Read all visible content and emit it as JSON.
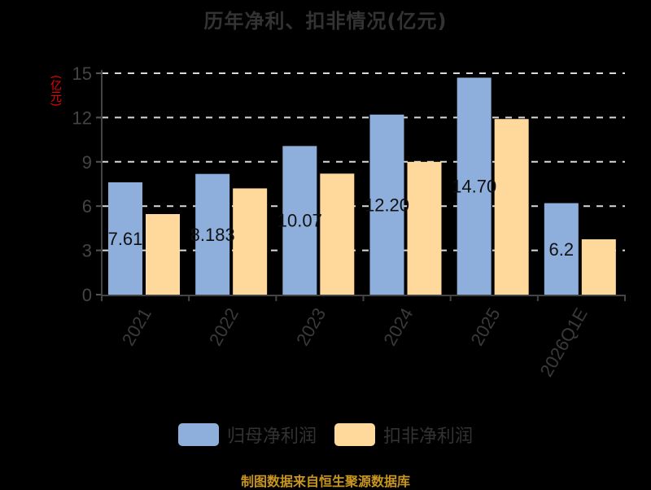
{
  "title": "历年净利、扣非情况(亿元)",
  "unit_label": "(亿元)",
  "legend": [
    {
      "label": "归母净利润",
      "color": "#8eaedb"
    },
    {
      "label": "扣非净利润",
      "color": "#ffd99c"
    }
  ],
  "footer": "制图数据来自恒生聚源数据库",
  "chart_data": {
    "type": "bar",
    "title": "历年净利、扣非情况(亿元)",
    "xlabel": "",
    "ylabel": "(亿元)",
    "categories": [
      "2021",
      "2022",
      "2023",
      "2024",
      "2025",
      "2026Q1E"
    ],
    "series": [
      {
        "name": "归母净利润",
        "color": "#8eaedb",
        "values": [
          7.61,
          8.18,
          10.07,
          12.2,
          14.7,
          6.2
        ],
        "labels": [
          "7.61",
          "8.183",
          "10.07",
          "12.20",
          "14.70",
          "6.2"
        ]
      },
      {
        "name": "扣非净利润",
        "color": "#ffd99c",
        "values": [
          5.46,
          7.2,
          8.2,
          9.0,
          11.9,
          3.75
        ]
      }
    ],
    "yticks": [
      0,
      3,
      6,
      9,
      12,
      15
    ],
    "ylim": [
      0,
      15
    ],
    "grid": true,
    "legend_position": "bottom"
  }
}
